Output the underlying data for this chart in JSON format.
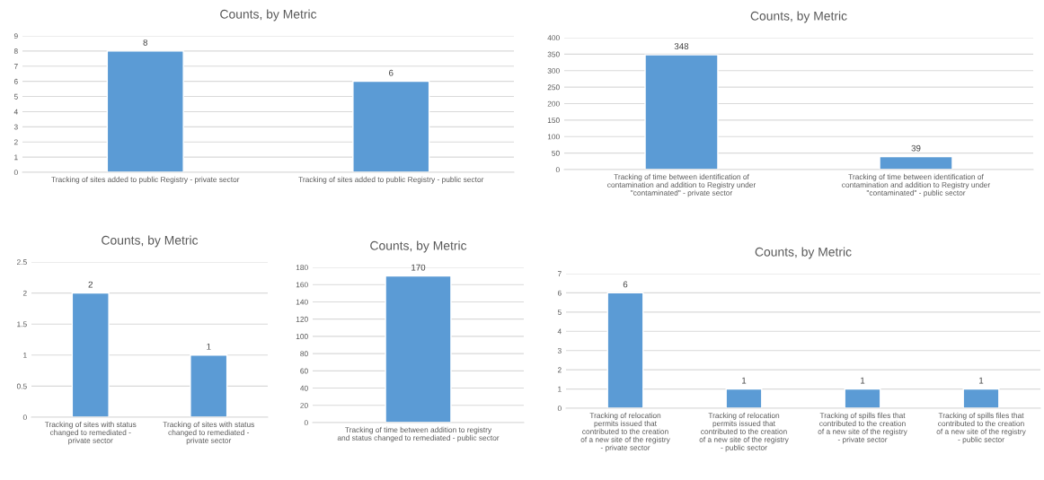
{
  "chart_data": [
    {
      "type": "bar",
      "title": "Counts, by Metric",
      "categories": [
        "Tracking of sites added to public Registry - private sector",
        "Tracking of sites added to public Registry - public sector"
      ],
      "values": [
        8,
        6
      ],
      "color": "#5b9bd5",
      "ylim": [
        0,
        9
      ],
      "yticks": [
        0,
        1,
        2,
        3,
        4,
        5,
        6,
        7,
        8,
        9
      ],
      "grid": "y",
      "data_labels": true
    },
    {
      "type": "bar",
      "title": "Counts, by Metric",
      "categories": [
        "Tracking of time between identification of\ncontamination and addition to Registry under\n\"contaminated\" - private sector",
        "Tracking of time between identification of\ncontamination and addition to Registry under\n\"contaminated\" - public sector"
      ],
      "values": [
        348,
        39
      ],
      "color": "#5b9bd5",
      "ylim": [
        0,
        400
      ],
      "yticks": [
        0,
        50,
        100,
        150,
        200,
        250,
        300,
        350,
        400
      ],
      "grid": "y",
      "data_labels": true
    },
    {
      "type": "bar",
      "title": "Counts, by Metric",
      "categories": [
        "Tracking of sites with status\nchanged to remediated -\nprivate sector",
        "Tracking of sites with status\nchanged to remediated -\nprivate sector"
      ],
      "values": [
        2,
        1
      ],
      "color": "#5b9bd5",
      "ylim": [
        0,
        2.5
      ],
      "yticks": [
        0,
        0.5,
        1,
        1.5,
        2,
        2.5
      ],
      "grid": "y",
      "data_labels": true
    },
    {
      "type": "bar",
      "title": "Counts, by Metric",
      "categories": [
        "Tracking of time between addition to registry\nand status changed to remediated - public sector"
      ],
      "values": [
        170
      ],
      "color": "#5b9bd5",
      "ylim": [
        0,
        180
      ],
      "yticks": [
        0,
        20,
        40,
        60,
        80,
        100,
        120,
        140,
        160,
        180
      ],
      "grid": "y",
      "data_labels": true
    },
    {
      "type": "bar",
      "title": "Counts, by Metric",
      "categories": [
        "Tracking of relocation\npermits issued that\ncontributed to the creation\nof a new site of the registry\n- private sector",
        "Tracking of relocation\npermits issued that\ncontributed to the creation\nof a new site of the registry\n- public sector",
        "Tracking of spills files that\ncontributed to the creation\nof a new site of the registry\n- private sector",
        "Tracking of spills files that\ncontributed to the creation\nof a new site of the registry\n- public sector"
      ],
      "values": [
        6,
        1,
        1,
        1
      ],
      "color": "#5b9bd5",
      "ylim": [
        0,
        7
      ],
      "yticks": [
        0,
        1,
        2,
        3,
        4,
        5,
        6,
        7
      ],
      "grid": "y",
      "data_labels": true
    }
  ]
}
